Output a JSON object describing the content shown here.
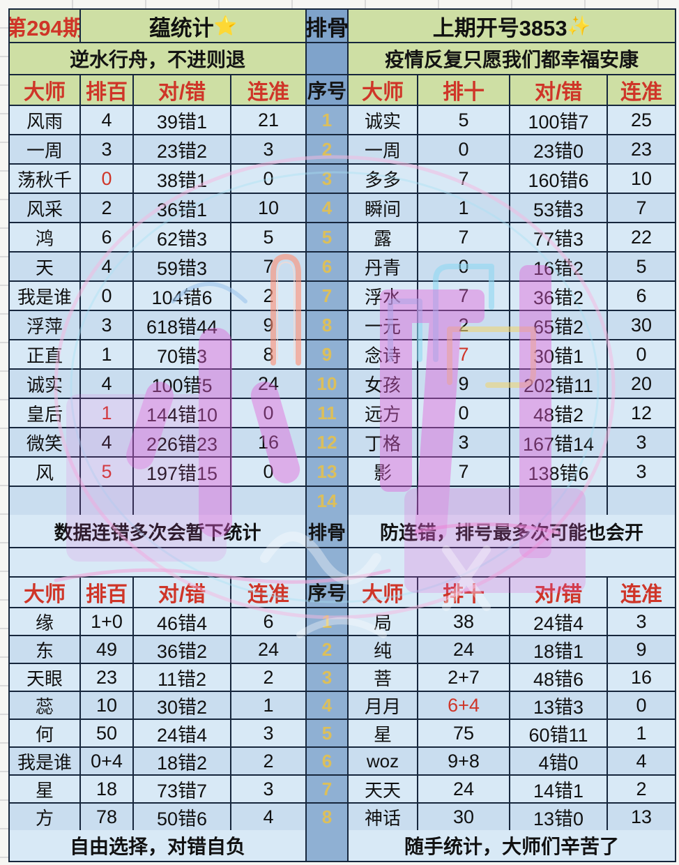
{
  "banner": {
    "period": "第294期",
    "title": "蕴统计",
    "title_star": "⭐",
    "middle_label": "排骨",
    "last_draw": "上期开号3853",
    "last_draw_sparkle": "✨"
  },
  "mottos": {
    "left": "逆水行舟，不进则退",
    "right": "疫情反复只愿我们都幸福安康"
  },
  "headers": {
    "master": "大师",
    "rank_hundreds": "排百",
    "rank_tens": "排十",
    "right_wrong": "对/错",
    "streak": "连准",
    "seq": "序号"
  },
  "table1": {
    "seq": [
      "1",
      "2",
      "3",
      "4",
      "5",
      "6",
      "7",
      "8",
      "9",
      "10",
      "11",
      "12",
      "13",
      "14"
    ],
    "left": [
      {
        "name": "风雨",
        "rank": "4",
        "score": "39错1",
        "streak": "21",
        "rank_red": false
      },
      {
        "name": "一周",
        "rank": "3",
        "score": "23错2",
        "streak": "3",
        "rank_red": false
      },
      {
        "name": "荡秋千",
        "rank": "0",
        "score": "38错1",
        "streak": "0",
        "rank_red": true
      },
      {
        "name": "风采",
        "rank": "2",
        "score": "36错1",
        "streak": "10",
        "rank_red": false
      },
      {
        "name": "鸿",
        "rank": "6",
        "score": "62错3",
        "streak": "5",
        "rank_red": false
      },
      {
        "name": "天",
        "rank": "4",
        "score": "59错3",
        "streak": "7",
        "rank_red": false
      },
      {
        "name": "我是谁",
        "rank": "0",
        "score": "104错6",
        "streak": "2",
        "rank_red": false
      },
      {
        "name": "浮萍",
        "rank": "3",
        "score": "618错44",
        "streak": "9",
        "rank_red": false
      },
      {
        "name": "正直",
        "rank": "1",
        "score": "70错3",
        "streak": "8",
        "rank_red": false
      },
      {
        "name": "诚实",
        "rank": "4",
        "score": "100错5",
        "streak": "24",
        "rank_red": false
      },
      {
        "name": "皇后",
        "rank": "1",
        "score": "144错10",
        "streak": "0",
        "rank_red": true
      },
      {
        "name": "微笑",
        "rank": "4",
        "score": "226错23",
        "streak": "16",
        "rank_red": false
      },
      {
        "name": "风",
        "rank": "5",
        "score": "197错15",
        "streak": "0",
        "rank_red": true
      },
      {
        "name": "",
        "rank": "",
        "score": "",
        "streak": "",
        "rank_red": false
      }
    ],
    "right": [
      {
        "name": "诚实",
        "rank": "5",
        "score": "100错7",
        "streak": "25",
        "rank_red": false
      },
      {
        "name": "一周",
        "rank": "0",
        "score": "23错0",
        "streak": "23",
        "rank_red": false
      },
      {
        "name": "多多",
        "rank": "7",
        "score": "160错6",
        "streak": "10",
        "rank_red": false
      },
      {
        "name": "瞬间",
        "rank": "1",
        "score": "53错3",
        "streak": "7",
        "rank_red": false
      },
      {
        "name": "露",
        "rank": "7",
        "score": "77错3",
        "streak": "22",
        "rank_red": false
      },
      {
        "name": "丹青",
        "rank": "0",
        "score": "16错2",
        "streak": "5",
        "rank_red": false
      },
      {
        "name": "浮水",
        "rank": "7",
        "score": "36错2",
        "streak": "6",
        "rank_red": false
      },
      {
        "name": "一元",
        "rank": "2",
        "score": "65错2",
        "streak": "30",
        "rank_red": false
      },
      {
        "name": "念诗",
        "rank": "7",
        "score": "30错1",
        "streak": "0",
        "rank_red": true
      },
      {
        "name": "女孩",
        "rank": "9",
        "score": "202错11",
        "streak": "20",
        "rank_red": false
      },
      {
        "name": "远方",
        "rank": "0",
        "score": "48错2",
        "streak": "12",
        "rank_red": false
      },
      {
        "name": "丁格",
        "rank": "3",
        "score": "167错14",
        "streak": "3",
        "rank_red": false
      },
      {
        "name": "影",
        "rank": "7",
        "score": "138错6",
        "streak": "3",
        "rank_red": false
      },
      {
        "name": "",
        "rank": "",
        "score": "",
        "streak": "",
        "rank_red": false
      }
    ]
  },
  "divider": {
    "left": "数据连错多次会暂下统计",
    "middle": "排骨",
    "right": "防连错，排号最多次可能也会开"
  },
  "table2": {
    "seq": [
      "1",
      "2",
      "3",
      "4",
      "5",
      "6",
      "7",
      "8"
    ],
    "left": [
      {
        "name": "缘",
        "rank": "1+0",
        "score": "46错4",
        "streak": "6",
        "rank_red": false
      },
      {
        "name": "东",
        "rank": "49",
        "score": "36错2",
        "streak": "24",
        "rank_red": false
      },
      {
        "name": "天眼",
        "rank": "23",
        "score": "11错2",
        "streak": "2",
        "rank_red": false
      },
      {
        "name": "蕊",
        "rank": "10",
        "score": "30错2",
        "streak": "1",
        "rank_red": false
      },
      {
        "name": "何",
        "rank": "50",
        "score": "24错4",
        "streak": "3",
        "rank_red": false
      },
      {
        "name": "我是谁",
        "rank": "0+4",
        "score": "18错2",
        "streak": "2",
        "rank_red": false
      },
      {
        "name": "星",
        "rank": "18",
        "score": "73错7",
        "streak": "3",
        "rank_red": false
      },
      {
        "name": "方",
        "rank": "78",
        "score": "50错6",
        "streak": "4",
        "rank_red": false
      }
    ],
    "right": [
      {
        "name": "局",
        "rank": "38",
        "score": "24错4",
        "streak": "3",
        "rank_red": false
      },
      {
        "name": "纯",
        "rank": "24",
        "score": "18错1",
        "streak": "9",
        "rank_red": false
      },
      {
        "name": "菩",
        "rank": "2+7",
        "score": "48错6",
        "streak": "16",
        "rank_red": false
      },
      {
        "name": "月月",
        "rank": "6+4",
        "score": "13错3",
        "streak": "0",
        "rank_red": true
      },
      {
        "name": "星",
        "rank": "75",
        "score": "60错11",
        "streak": "1",
        "rank_red": false
      },
      {
        "name": "woz",
        "rank": "9+8",
        "score": "4错0",
        "streak": "4",
        "rank_red": false
      },
      {
        "name": "天天",
        "rank": "24",
        "score": "14错1",
        "streak": "2",
        "rank_red": false
      },
      {
        "name": "神话",
        "rank": "30",
        "score": "13错0",
        "streak": "13",
        "rank_red": false
      }
    ]
  },
  "footer": {
    "left": "自由选择，对错自负",
    "right": "随手统计，大师们辛苦了"
  },
  "watermark": {
    "text": "小凯"
  },
  "colors": {
    "header_green": "#cedfa4",
    "accent_red": "#cf3528",
    "mid_blue": "#7fa3cb",
    "row_light": "#d8e9f6",
    "row_dark": "#c9ddef",
    "seq_yellow": "#e0c054",
    "watermark_magenta": "#e35ed6"
  }
}
